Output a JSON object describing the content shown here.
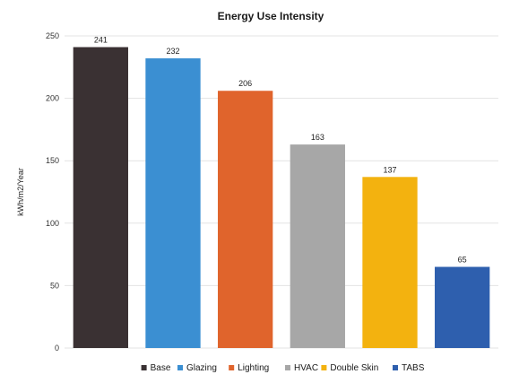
{
  "chart_data": {
    "type": "bar",
    "title": "Energy Use Intensity",
    "ylabel": "kWh/m2/Year",
    "xlabel": "",
    "categories": [
      "Base",
      "Glazing",
      "Lighting",
      "HVAC",
      "Double Skin",
      "TABS"
    ],
    "values": [
      241,
      232,
      206,
      163,
      137,
      65
    ],
    "data_labels": [
      "241",
      "232",
      "206",
      "163",
      "137",
      "65"
    ],
    "colors": [
      "#3a3133",
      "#3b8fd2",
      "#e0642c",
      "#a7a7a7",
      "#f3b20f",
      "#2e5fae"
    ],
    "ylim": [
      0,
      250
    ],
    "yticks": [
      0,
      50,
      100,
      150,
      200,
      250
    ],
    "ytick_labels": [
      "0",
      "50",
      "100",
      "150",
      "200",
      "250"
    ],
    "grid": true,
    "legend_position": "bottom",
    "legend": [
      {
        "label": "Base",
        "color": "#3a3133"
      },
      {
        "label": "Glazing",
        "color": "#3b8fd2"
      },
      {
        "label": "Lighting",
        "color": "#e0642c"
      },
      {
        "label": "HVAC",
        "color": "#a7a7a7"
      },
      {
        "label": "Double Skin",
        "color": "#f3b20f"
      },
      {
        "label": "TABS",
        "color": "#2e5fae"
      }
    ]
  }
}
